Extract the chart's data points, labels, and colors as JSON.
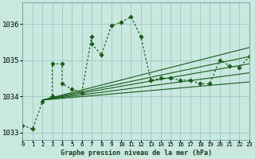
{
  "title": "Graphe pression niveau de la mer (hPa)",
  "bg_color": "#c8e8e0",
  "grid_color": "#a0c8c0",
  "line_color": "#1a5c1a",
  "xlim": [
    0,
    23
  ],
  "ylim": [
    1032.8,
    1036.6
  ],
  "yticks": [
    1033,
    1034,
    1035,
    1036
  ],
  "xtick_labels": [
    "0",
    "1",
    "2",
    "3",
    "4",
    "5",
    "6",
    "7",
    "8",
    "9",
    "10",
    "11",
    "12",
    "13",
    "14",
    "15",
    "16",
    "17",
    "18",
    "19",
    "20",
    "21",
    "22",
    "23"
  ],
  "series_main": [
    [
      0,
      1033.2
    ],
    [
      1,
      1033.1
    ],
    [
      2,
      1033.85
    ],
    [
      3,
      1034.0
    ],
    [
      3,
      1034.9
    ],
    [
      4,
      1034.9
    ],
    [
      4,
      1034.35
    ],
    [
      5,
      1034.2
    ],
    [
      6,
      1034.1
    ],
    [
      7,
      1035.65
    ],
    [
      7,
      1035.45
    ],
    [
      8,
      1035.15
    ],
    [
      9,
      1035.95
    ],
    [
      10,
      1036.05
    ],
    [
      11,
      1036.2
    ],
    [
      12,
      1035.65
    ],
    [
      13,
      1034.45
    ],
    [
      14,
      1034.5
    ],
    [
      15,
      1034.5
    ],
    [
      16,
      1034.45
    ],
    [
      17,
      1034.45
    ],
    [
      18,
      1034.35
    ],
    [
      19,
      1034.35
    ],
    [
      20,
      1035.0
    ],
    [
      21,
      1034.85
    ],
    [
      22,
      1034.8
    ],
    [
      23,
      1035.1
    ]
  ],
  "series_trend1": [
    [
      2,
      1033.9
    ],
    [
      23,
      1035.35
    ]
  ],
  "series_trend2": [
    [
      2,
      1033.9
    ],
    [
      23,
      1035.1
    ]
  ],
  "series_trend3": [
    [
      2,
      1033.9
    ],
    [
      23,
      1034.9
    ]
  ],
  "series_trend4": [
    [
      2,
      1033.9
    ],
    [
      23,
      1034.65
    ]
  ],
  "series_trend5": [
    [
      2,
      1033.9
    ],
    [
      23,
      1034.4
    ]
  ]
}
